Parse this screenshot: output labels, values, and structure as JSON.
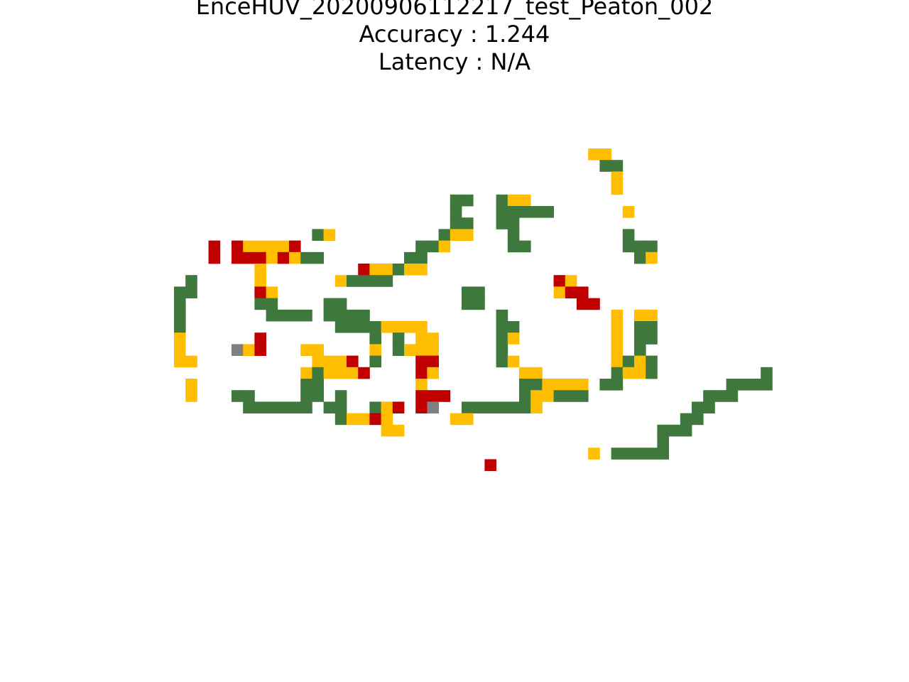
{
  "title": {
    "line1": "EnceHUV_20200906112217_test_Peaton_002",
    "line2": "Accuracy : 1.244",
    "line3": "Latency : N/A"
  },
  "palette": {
    "G": "#3e783d",
    "Y": "#ffbf00",
    "R": "#c00000",
    "X": "#808080"
  },
  "grid": {
    "rows": [
      "....................................YY....",
      ".....................................GG...",
      "......................................Y...",
      "......................................Y...",
      "........................GG..GYY...........",
      "........................G...GGGGG......Y..",
      "........................GG..GG............",
      "............GY.........GYY...G.........G..",
      "...R.RYYYYR..........GGY.....GG........GGG",
      "...R.RRRYRYGG.......GG..................GY",
      ".......Y........RYYGYY....................",
      ".G.....Y......YGGGG..............RY.......",
      "GG.....RY................GG......YRR......",
      "G......GG....GG..........GG........RR.....",
      "G.......GGGG.GGGG...........G.........Y.YY",
      "G.............GGGGYYYY......GG........Y.GG",
      "Y......R.........G.G.YY.....GY........Y.GG",
      "Y....XYR...YY....Y.GYYY.....G.........Y.G.",
      "YY..........YYYR.G...RR.....GY........YGYG",
      "...........YGYYYR....RY.......YY......GYYG",
      ".Y.........GG........Y........GGYYYY.GG...",
      ".Y...GG....GG.G......RRR......GYYGGG......",
      "......GGGGGG.GG..GYR.RX..GGGGGGY..........",
      "..............GYYRY.....YY................",
      "..................YY......................",
      "..........................................",
      "....................................Y.GGGG",
      "...........................R.............."
    ],
    "extension": [
      "..........",
      "..........",
      "..........",
      "..........",
      "..........",
      "..........",
      "..........",
      "..........",
      "..........",
      "..........",
      "..........",
      "..........",
      "..........",
      "..........",
      "..........",
      "..........",
      "..........",
      "..........",
      "..........",
      ".........G",
      "......GGGG",
      "....GGG...",
      "...GG.....",
      "..GG......",
      "GGG.......",
      "G.........",
      "G.........",
      ".........."
    ]
  }
}
